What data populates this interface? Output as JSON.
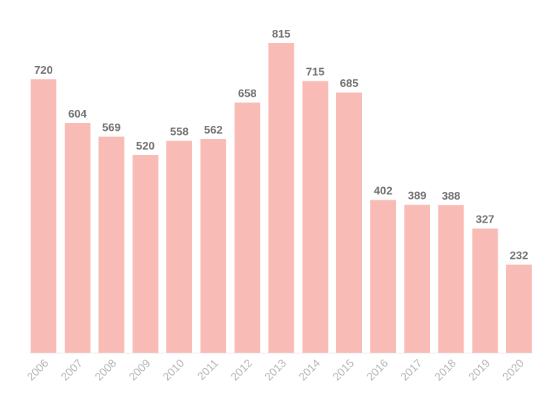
{
  "colors": {
    "bar": "#f9bbb6",
    "value_label": "#6f6f6f",
    "tick_label": "#b3b3b3",
    "axis": "#e3e3e3"
  },
  "chart_data": {
    "type": "bar",
    "title": "",
    "xlabel": "",
    "ylabel": "",
    "categories": [
      "2006",
      "2007",
      "2008",
      "2009",
      "2010",
      "2011",
      "2012",
      "2013",
      "2014",
      "2015",
      "2016",
      "2017",
      "2018",
      "2019",
      "2020"
    ],
    "values": [
      720,
      604,
      569,
      520,
      558,
      562,
      658,
      815,
      715,
      685,
      402,
      389,
      388,
      327,
      232
    ],
    "ylim": [
      0,
      815
    ],
    "grid": false,
    "legend": "none",
    "data_labels": true,
    "x_tick_rotation_deg": -45
  }
}
